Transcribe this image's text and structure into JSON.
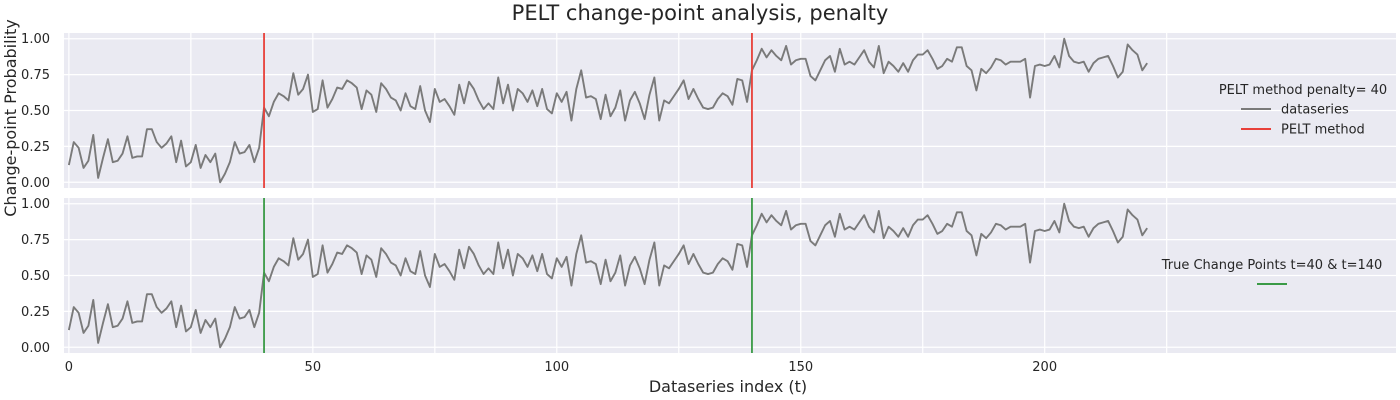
{
  "chart_data": {
    "type": "line",
    "title": "PELT change-point analysis, penalty",
    "xlabel": "Dataseries index (t)",
    "ylabel": "Change-point Probability",
    "xlim": [
      -1,
      272
    ],
    "ylim": [
      -0.04,
      1.04
    ],
    "x_ticks": [
      0,
      50,
      100,
      150,
      200
    ],
    "y_ticks": [
      0.0,
      0.25,
      0.5,
      0.75,
      1.0
    ],
    "y_tick_labels": [
      "0.00",
      "0.25",
      "0.50",
      "0.75",
      "1.00"
    ],
    "grid": true,
    "colors": {
      "series": "#7a7a7a",
      "pelt": "#e8403a",
      "true": "#3a9a46",
      "panel_bg": "#eaeaf2"
    },
    "series": [
      {
        "name": "dataseries",
        "values": [
          0.12,
          0.28,
          0.24,
          0.1,
          0.15,
          0.33,
          0.03,
          0.17,
          0.3,
          0.14,
          0.15,
          0.2,
          0.32,
          0.17,
          0.18,
          0.18,
          0.37,
          0.37,
          0.28,
          0.24,
          0.27,
          0.32,
          0.14,
          0.29,
          0.11,
          0.14,
          0.26,
          0.1,
          0.19,
          0.14,
          0.2,
          0.0,
          0.06,
          0.14,
          0.28,
          0.2,
          0.21,
          0.26,
          0.14,
          0.24,
          0.52,
          0.46,
          0.56,
          0.62,
          0.6,
          0.57,
          0.76,
          0.61,
          0.65,
          0.75,
          0.49,
          0.51,
          0.71,
          0.52,
          0.58,
          0.66,
          0.65,
          0.71,
          0.69,
          0.66,
          0.51,
          0.64,
          0.61,
          0.49,
          0.69,
          0.65,
          0.59,
          0.57,
          0.5,
          0.62,
          0.53,
          0.51,
          0.67,
          0.5,
          0.42,
          0.65,
          0.56,
          0.58,
          0.53,
          0.47,
          0.68,
          0.55,
          0.7,
          0.65,
          0.57,
          0.51,
          0.55,
          0.51,
          0.73,
          0.55,
          0.68,
          0.5,
          0.65,
          0.62,
          0.56,
          0.64,
          0.53,
          0.65,
          0.51,
          0.48,
          0.62,
          0.56,
          0.63,
          0.43,
          0.65,
          0.78,
          0.59,
          0.6,
          0.58,
          0.44,
          0.61,
          0.46,
          0.52,
          0.64,
          0.43,
          0.57,
          0.63,
          0.55,
          0.44,
          0.61,
          0.73,
          0.43,
          0.57,
          0.55,
          0.6,
          0.65,
          0.71,
          0.58,
          0.65,
          0.58,
          0.52,
          0.51,
          0.52,
          0.58,
          0.62,
          0.6,
          0.54,
          0.72,
          0.71,
          0.56,
          0.78,
          0.85,
          0.93,
          0.87,
          0.92,
          0.88,
          0.85,
          0.95,
          0.82,
          0.85,
          0.86,
          0.86,
          0.74,
          0.71,
          0.78,
          0.85,
          0.88,
          0.77,
          0.93,
          0.82,
          0.84,
          0.82,
          0.87,
          0.92,
          0.84,
          0.8,
          0.95,
          0.76,
          0.84,
          0.81,
          0.77,
          0.83,
          0.77,
          0.85,
          0.89,
          0.89,
          0.92,
          0.86,
          0.79,
          0.81,
          0.86,
          0.84,
          0.94,
          0.94,
          0.81,
          0.78,
          0.64,
          0.79,
          0.76,
          0.8,
          0.86,
          0.85,
          0.82,
          0.84,
          0.84,
          0.84,
          0.86,
          0.59,
          0.81,
          0.82,
          0.81,
          0.82,
          0.88,
          0.8,
          1.0,
          0.88,
          0.84,
          0.83,
          0.84,
          0.77,
          0.83,
          0.86,
          0.87,
          0.88,
          0.81,
          0.73,
          0.77,
          0.96,
          0.92,
          0.89,
          0.78,
          0.83
        ]
      }
    ],
    "panels": [
      {
        "id": "top",
        "legend_title": "PELT method penalty= 40",
        "legend": [
          {
            "label": "dataseries",
            "color": "#7a7a7a"
          },
          {
            "label": "PELT method",
            "color": "#e8403a"
          }
        ],
        "vlines": [
          40,
          140
        ],
        "vline_color": "#e8403a"
      },
      {
        "id": "bottom",
        "legend_title": "True Change Points t=40 & t=140",
        "legend": [
          {
            "label": "",
            "color": "#3a9a46"
          }
        ],
        "vlines": [
          40,
          140
        ],
        "vline_color": "#3a9a46"
      }
    ]
  }
}
